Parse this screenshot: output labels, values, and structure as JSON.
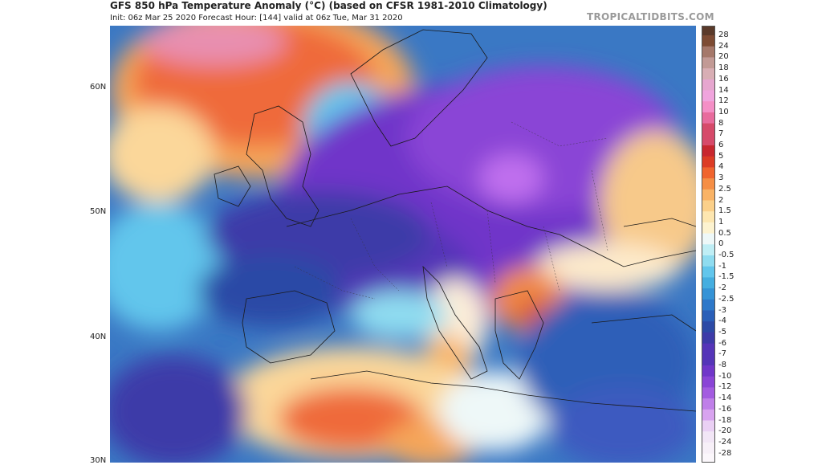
{
  "header": {
    "title": "GFS 850 hPa Temperature Anomaly (°C) (based on CFSR 1981-2010 Climatology)",
    "subtitle": "Init: 06z Mar 25 2020   Forecast Hour: [144]   valid at 06z Tue, Mar 31 2020",
    "brand": "TROPICALTIDBITS.COM"
  },
  "map": {
    "latitude_labels": [
      "60N",
      "50N",
      "40N",
      "30N"
    ]
  },
  "colorbar": {
    "ticks": [
      "28",
      "24",
      "20",
      "18",
      "16",
      "14",
      "12",
      "10",
      "8",
      "7",
      "6",
      "5",
      "4",
      "3",
      "2.5",
      "2",
      "1.5",
      "1",
      "0.5",
      "0",
      "-0.5",
      "-1",
      "-1.5",
      "-2",
      "-2.5",
      "-3",
      "-4",
      "-5",
      "-6",
      "-7",
      "-8",
      "-10",
      "-12",
      "-14",
      "-16",
      "-18",
      "-20",
      "-24",
      "-28"
    ],
    "colors": [
      "#7d4b33",
      "#a5786a",
      "#c29a95",
      "#d8aeb4",
      "#e6a6cf",
      "#f0a4dd",
      "#f48fc6",
      "#e86b9d",
      "#d64a6a",
      "#c8272f",
      "#dc3c25",
      "#f0642e",
      "#f58e45",
      "#f9b366",
      "#fbd08a",
      "#fde6b0",
      "#fdf3d0",
      "#eef8f8",
      "#bfeef5",
      "#8fdcf0",
      "#62c6ec",
      "#45aee0",
      "#3593d6",
      "#2d78c9",
      "#2a5fb8",
      "#2c4aa6",
      "#3d3ba8",
      "#5535b8",
      "#7036c9",
      "#8a44d6",
      "#a35be0",
      "#bf7fe8",
      "#d8a3ef",
      "#ead0f4",
      "#f2e6f6"
    ],
    "colors_hot": [
      "#5a3a2a",
      "#7d4b33",
      "#a5786a",
      "#c29a95",
      "#d8aeb4",
      "#e6a6cf",
      "#f0a4dd",
      "#f48fc6",
      "#e86b9d",
      "#d64a6a",
      "#c8272f",
      "#dc3c25",
      "#f0642e",
      "#f58e45",
      "#f9b366",
      "#fbd08a",
      "#fde6b0",
      "#fdf3d0"
    ],
    "colors_cold": [
      "#eef8f8",
      "#bfeef5",
      "#8fdcf0",
      "#62c6ec",
      "#45aee0",
      "#3593d6",
      "#2d78c9",
      "#2a5fb8",
      "#2c4aa6",
      "#3d3ba8",
      "#5535b8",
      "#7036c9",
      "#8a44d6",
      "#a35be0",
      "#bf7fe8",
      "#d8a3ef",
      "#ead0f4",
      "#f2e6f6",
      "#f7f0f8",
      "#fbf7fb"
    ]
  }
}
